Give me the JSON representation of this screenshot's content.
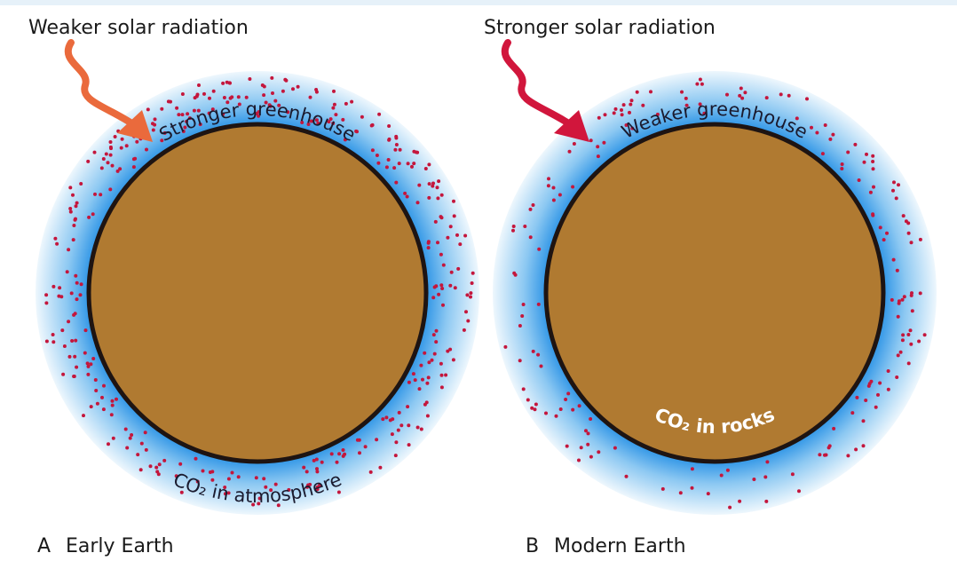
{
  "panels": [
    {
      "letter": "A",
      "caption": "Early Earth",
      "radiation": "Weaker solar radiation",
      "greenhouse": "Stronger greenhouse",
      "co2": "CO₂ in atmosphere"
    },
    {
      "letter": "B",
      "caption": "Modern Earth",
      "radiation": "Stronger solar radiation",
      "greenhouse": "Weaker greenhouse",
      "co2": "CO₂ in rocks"
    }
  ]
}
